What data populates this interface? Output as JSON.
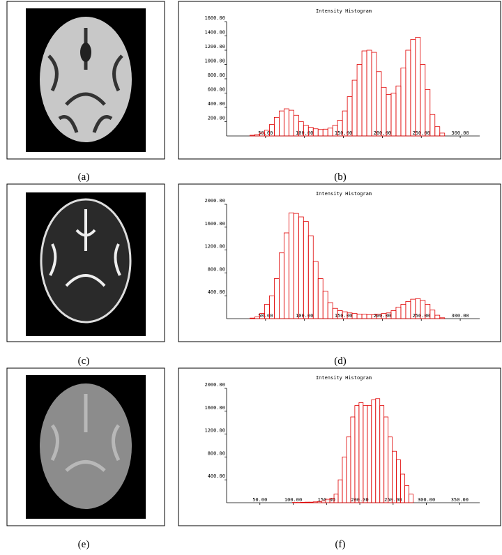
{
  "image_captions": [
    "(a)",
    "(c)",
    "(e)"
  ],
  "chart_data": [
    {
      "type": "histogram",
      "title": "Intensity Histogram",
      "caption": "(b)",
      "color": "#e00000",
      "bins": [
        30,
        36.25,
        42.5,
        48.75,
        55,
        61.25,
        67.5,
        73.75,
        80,
        86.25,
        92.5,
        98.75,
        105,
        111.25,
        117.5,
        123.75,
        130,
        136.25,
        142.5,
        148.75,
        155,
        161.25,
        167.5,
        173.75,
        180,
        186.25,
        192.5,
        198.75,
        205,
        211.25,
        217.5,
        223.75,
        230,
        236.25,
        242.5,
        248.75,
        255,
        261.25,
        267.5,
        273.75,
        280
      ],
      "values": [
        10,
        20,
        40,
        80,
        160,
        260,
        350,
        380,
        360,
        290,
        200,
        150,
        120,
        100,
        90,
        95,
        110,
        150,
        220,
        350,
        550,
        780,
        1000,
        1190,
        1200,
        1170,
        900,
        680,
        580,
        600,
        700,
        950,
        1200,
        1350,
        1380,
        1000,
        650,
        300,
        130,
        40
      ],
      "xlim": [
        0,
        325
      ],
      "xticks": [
        {
          "value": 50,
          "label": "50.00"
        },
        {
          "value": 100,
          "label": "100.00"
        },
        {
          "value": 150,
          "label": "150.00"
        },
        {
          "value": 200,
          "label": "200.00"
        },
        {
          "value": 250,
          "label": "250.00"
        },
        {
          "value": 300,
          "label": "300.00"
        }
      ],
      "ylim": [
        0,
        1600
      ],
      "yticks": [
        {
          "value": 200,
          "label": "200.00"
        },
        {
          "value": 400,
          "label": "400.00"
        },
        {
          "value": 600,
          "label": "600.00"
        },
        {
          "value": 800,
          "label": "800.00"
        },
        {
          "value": 1000,
          "label": "1000.00"
        },
        {
          "value": 1200,
          "label": "1200.00"
        },
        {
          "value": 1400,
          "label": "1400.00"
        },
        {
          "value": 1600,
          "label": "1600.00"
        }
      ]
    },
    {
      "type": "histogram",
      "title": "Intensity Histogram",
      "caption": "(d)",
      "color": "#e00000",
      "bins": [
        30,
        36.25,
        42.5,
        48.75,
        55,
        61.25,
        67.5,
        73.75,
        80,
        86.25,
        92.5,
        98.75,
        105,
        111.25,
        117.5,
        123.75,
        130,
        136.25,
        142.5,
        148.75,
        155,
        161.25,
        167.5,
        173.75,
        180,
        186.25,
        192.5,
        198.75,
        205,
        211.25,
        217.5,
        223.75,
        230,
        236.25,
        242.5,
        248.75,
        255,
        261.25,
        267.5,
        273.75,
        280
      ],
      "values": [
        10,
        30,
        90,
        250,
        400,
        700,
        1150,
        1500,
        1850,
        1840,
        1780,
        1700,
        1450,
        1000,
        700,
        480,
        280,
        180,
        140,
        120,
        100,
        90,
        80,
        80,
        70,
        70,
        80,
        90,
        100,
        140,
        200,
        250,
        300,
        340,
        350,
        320,
        250,
        150,
        60,
        15
      ],
      "xlim": [
        0,
        325
      ],
      "xticks": [
        {
          "value": 50,
          "label": "50.00"
        },
        {
          "value": 100,
          "label": "100.00"
        },
        {
          "value": 150,
          "label": "150.00"
        },
        {
          "value": 200,
          "label": "200.00"
        },
        {
          "value": 250,
          "label": "250.00"
        },
        {
          "value": 300,
          "label": "300.00"
        }
      ],
      "ylim": [
        0,
        2000
      ],
      "yticks": [
        {
          "value": 400,
          "label": "400.00"
        },
        {
          "value": 800,
          "label": "800.00"
        },
        {
          "value": 1200,
          "label": "1200.00"
        },
        {
          "value": 1600,
          "label": "1600.00"
        },
        {
          "value": 2000,
          "label": "2000.00"
        }
      ]
    },
    {
      "type": "histogram",
      "title": "Intensity Histogram",
      "caption": "(f)",
      "color": "#e00000",
      "bins": [
        30,
        36.25,
        42.5,
        48.75,
        55,
        61.25,
        67.5,
        73.75,
        80,
        86.25,
        92.5,
        98.75,
        105,
        111.25,
        117.5,
        123.75,
        130,
        136.25,
        142.5,
        148.75,
        155,
        161.25,
        167.5,
        173.75,
        180,
        186.25,
        192.5,
        198.75,
        205,
        211.25,
        217.5,
        223.75,
        230,
        236.25,
        242.5,
        248.75,
        255,
        261.25,
        267.5,
        273.75,
        280
      ],
      "values": [
        0,
        0,
        0,
        0,
        0,
        0,
        0,
        0,
        0,
        0,
        0,
        5,
        5,
        8,
        10,
        10,
        15,
        20,
        30,
        60,
        80,
        150,
        400,
        800,
        1150,
        1500,
        1700,
        1750,
        1700,
        1700,
        1800,
        1820,
        1700,
        1500,
        1150,
        900,
        750,
        500,
        300,
        150
      ],
      "xlim": [
        0,
        380
      ],
      "xticks": [
        {
          "value": 50,
          "label": "50.00"
        },
        {
          "value": 100,
          "label": "100.00"
        },
        {
          "value": 150,
          "label": "150.00"
        },
        {
          "value": 200,
          "label": "200.00"
        },
        {
          "value": 250,
          "label": "250.00"
        },
        {
          "value": 300,
          "label": "300.00"
        },
        {
          "value": 350,
          "label": "350.00"
        }
      ],
      "ylim": [
        0,
        2000
      ],
      "yticks": [
        {
          "value": 400,
          "label": "400.00"
        },
        {
          "value": 800,
          "label": "800.00"
        },
        {
          "value": 1200,
          "label": "1200.00"
        },
        {
          "value": 1600,
          "label": "1600.00"
        },
        {
          "value": 2000,
          "label": "2000.00"
        }
      ]
    }
  ]
}
